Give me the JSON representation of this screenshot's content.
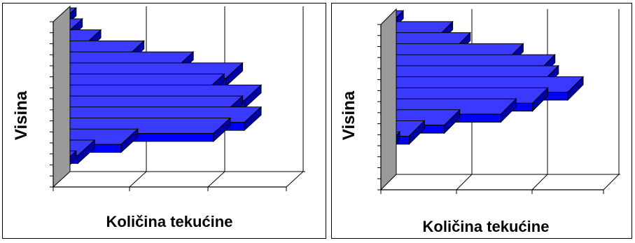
{
  "chart_data": [
    {
      "type": "bar",
      "orientation": "horizontal",
      "style": "3d",
      "xlabel": "Količina tekućine",
      "ylabel": "Visina",
      "bar_color": "#0000FF",
      "grid": true,
      "values": [
        1,
        2,
        5,
        12,
        20,
        28,
        25,
        31,
        28,
        31,
        26,
        11,
        4,
        1,
        0
      ]
    },
    {
      "type": "bar",
      "orientation": "horizontal",
      "style": "3d",
      "xlabel": "Količina tekućine",
      "ylabel": "Visina",
      "bar_color": "#0000FF",
      "grid": true,
      "values": [
        2,
        16,
        21,
        36,
        45,
        46,
        53,
        43,
        34,
        18,
        8,
        1,
        0,
        0,
        0
      ]
    }
  ]
}
